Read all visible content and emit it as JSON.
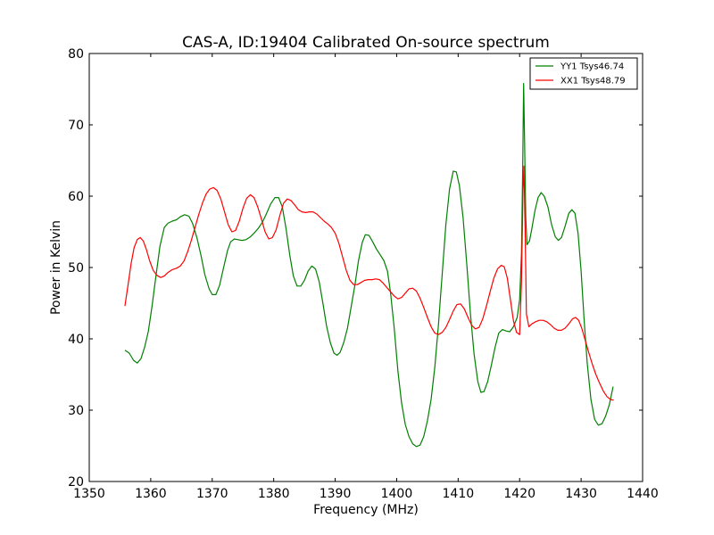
{
  "chart_data": {
    "type": "line",
    "title": "CAS-A, ID:19404 Calibrated On-source spectrum",
    "xlabel": "Frequency (MHz)",
    "ylabel": "Power in Kelvin",
    "xlim": [
      1350,
      1440
    ],
    "ylim": [
      20,
      80
    ],
    "xticks": [
      1350,
      1360,
      1370,
      1380,
      1390,
      1400,
      1410,
      1420,
      1430,
      1440
    ],
    "yticks": [
      20,
      30,
      40,
      50,
      60,
      70,
      80
    ],
    "grid": false,
    "legend_position": "top-right",
    "series": [
      {
        "name": "YY1 Tsys46.74",
        "color": "#008000",
        "points": [
          [
            1355.8,
            38.4
          ],
          [
            1356.5,
            38.0
          ],
          [
            1357.2,
            37.0
          ],
          [
            1357.8,
            36.6
          ],
          [
            1358.4,
            37.2
          ],
          [
            1359.0,
            38.8
          ],
          [
            1359.6,
            41.0
          ],
          [
            1360.2,
            44.5
          ],
          [
            1360.8,
            48.5
          ],
          [
            1361.5,
            53.0
          ],
          [
            1362.2,
            55.6
          ],
          [
            1362.8,
            56.2
          ],
          [
            1363.5,
            56.5
          ],
          [
            1364.2,
            56.7
          ],
          [
            1364.8,
            57.1
          ],
          [
            1365.5,
            57.4
          ],
          [
            1366.2,
            57.2
          ],
          [
            1366.8,
            56.2
          ],
          [
            1367.5,
            54.2
          ],
          [
            1368.2,
            51.6
          ],
          [
            1368.8,
            49.0
          ],
          [
            1369.5,
            47.0
          ],
          [
            1370.0,
            46.2
          ],
          [
            1370.6,
            46.2
          ],
          [
            1371.2,
            47.5
          ],
          [
            1371.8,
            49.8
          ],
          [
            1372.5,
            52.4
          ],
          [
            1373.0,
            53.6
          ],
          [
            1373.6,
            54.0
          ],
          [
            1374.2,
            53.9
          ],
          [
            1374.8,
            53.8
          ],
          [
            1375.5,
            53.9
          ],
          [
            1376.2,
            54.3
          ],
          [
            1376.8,
            54.8
          ],
          [
            1377.5,
            55.5
          ],
          [
            1378.2,
            56.4
          ],
          [
            1378.8,
            57.5
          ],
          [
            1379.5,
            58.9
          ],
          [
            1380.2,
            59.8
          ],
          [
            1380.8,
            59.8
          ],
          [
            1381.4,
            58.5
          ],
          [
            1382.0,
            55.5
          ],
          [
            1382.6,
            51.8
          ],
          [
            1383.2,
            48.8
          ],
          [
            1383.8,
            47.4
          ],
          [
            1384.4,
            47.4
          ],
          [
            1385.0,
            48.2
          ],
          [
            1385.6,
            49.5
          ],
          [
            1386.2,
            50.2
          ],
          [
            1386.8,
            49.8
          ],
          [
            1387.4,
            48.0
          ],
          [
            1388.0,
            45.0
          ],
          [
            1388.6,
            41.8
          ],
          [
            1389.2,
            39.5
          ],
          [
            1389.8,
            38.0
          ],
          [
            1390.3,
            37.7
          ],
          [
            1390.8,
            38.1
          ],
          [
            1391.4,
            39.5
          ],
          [
            1392.0,
            41.5
          ],
          [
            1392.6,
            44.5
          ],
          [
            1393.2,
            47.5
          ],
          [
            1393.8,
            51.0
          ],
          [
            1394.4,
            53.5
          ],
          [
            1394.9,
            54.6
          ],
          [
            1395.5,
            54.5
          ],
          [
            1396.1,
            53.6
          ],
          [
            1396.7,
            52.6
          ],
          [
            1397.3,
            51.8
          ],
          [
            1397.9,
            51.0
          ],
          [
            1398.5,
            49.5
          ],
          [
            1399.0,
            46.5
          ],
          [
            1399.6,
            41.5
          ],
          [
            1400.2,
            35.5
          ],
          [
            1400.8,
            31.0
          ],
          [
            1401.4,
            28.0
          ],
          [
            1402.0,
            26.3
          ],
          [
            1402.6,
            25.3
          ],
          [
            1403.2,
            24.9
          ],
          [
            1403.8,
            25.1
          ],
          [
            1404.4,
            26.3
          ],
          [
            1405.0,
            28.5
          ],
          [
            1405.6,
            31.5
          ],
          [
            1406.2,
            36.0
          ],
          [
            1406.8,
            42.0
          ],
          [
            1407.4,
            49.0
          ],
          [
            1408.0,
            56.0
          ],
          [
            1408.6,
            61.0
          ],
          [
            1409.2,
            63.5
          ],
          [
            1409.7,
            63.4
          ],
          [
            1410.2,
            61.5
          ],
          [
            1410.8,
            57.0
          ],
          [
            1411.4,
            50.5
          ],
          [
            1412.0,
            43.5
          ],
          [
            1412.6,
            37.8
          ],
          [
            1413.2,
            34.0
          ],
          [
            1413.7,
            32.5
          ],
          [
            1414.2,
            32.6
          ],
          [
            1414.8,
            34.0
          ],
          [
            1415.4,
            36.3
          ],
          [
            1416.0,
            38.8
          ],
          [
            1416.6,
            40.8
          ],
          [
            1417.2,
            41.3
          ],
          [
            1417.8,
            41.1
          ],
          [
            1418.4,
            41.0
          ],
          [
            1419.0,
            41.7
          ],
          [
            1419.6,
            43.0
          ],
          [
            1420.0,
            45.5
          ],
          [
            1420.3,
            52.0
          ],
          [
            1420.5,
            64.0
          ],
          [
            1420.65,
            75.8
          ],
          [
            1420.8,
            68.0
          ],
          [
            1421.0,
            57.0
          ],
          [
            1421.2,
            53.2
          ],
          [
            1421.6,
            53.7
          ],
          [
            1422.0,
            55.5
          ],
          [
            1422.5,
            58.0
          ],
          [
            1423.0,
            59.8
          ],
          [
            1423.5,
            60.5
          ],
          [
            1424.0,
            60.0
          ],
          [
            1424.6,
            58.5
          ],
          [
            1425.2,
            56.0
          ],
          [
            1425.8,
            54.3
          ],
          [
            1426.3,
            53.8
          ],
          [
            1426.8,
            54.2
          ],
          [
            1427.4,
            55.8
          ],
          [
            1428.0,
            57.6
          ],
          [
            1428.5,
            58.1
          ],
          [
            1429.0,
            57.6
          ],
          [
            1429.5,
            54.8
          ],
          [
            1430.0,
            49.5
          ],
          [
            1430.5,
            42.5
          ],
          [
            1431.0,
            36.5
          ],
          [
            1431.6,
            31.5
          ],
          [
            1432.2,
            28.7
          ],
          [
            1432.8,
            27.9
          ],
          [
            1433.4,
            28.1
          ],
          [
            1434.0,
            29.2
          ],
          [
            1434.6,
            30.8
          ],
          [
            1435.2,
            33.3
          ]
        ]
      },
      {
        "name": "XX1 Tsys48.79",
        "color": "#ff0000",
        "points": [
          [
            1355.8,
            44.6
          ],
          [
            1356.3,
            47.5
          ],
          [
            1356.8,
            50.5
          ],
          [
            1357.3,
            52.8
          ],
          [
            1357.8,
            53.9
          ],
          [
            1358.3,
            54.2
          ],
          [
            1358.8,
            53.7
          ],
          [
            1359.3,
            52.5
          ],
          [
            1359.8,
            51.0
          ],
          [
            1360.4,
            49.6
          ],
          [
            1361.0,
            48.9
          ],
          [
            1361.6,
            48.6
          ],
          [
            1362.2,
            48.8
          ],
          [
            1362.8,
            49.3
          ],
          [
            1363.5,
            49.7
          ],
          [
            1364.2,
            49.9
          ],
          [
            1364.8,
            50.2
          ],
          [
            1365.4,
            50.9
          ],
          [
            1366.0,
            52.2
          ],
          [
            1366.6,
            53.8
          ],
          [
            1367.2,
            55.6
          ],
          [
            1367.8,
            57.4
          ],
          [
            1368.4,
            59.0
          ],
          [
            1369.0,
            60.3
          ],
          [
            1369.6,
            61.0
          ],
          [
            1370.2,
            61.2
          ],
          [
            1370.8,
            60.8
          ],
          [
            1371.4,
            59.6
          ],
          [
            1372.0,
            57.8
          ],
          [
            1372.6,
            56.0
          ],
          [
            1373.2,
            55.0
          ],
          [
            1373.8,
            55.2
          ],
          [
            1374.4,
            56.5
          ],
          [
            1375.0,
            58.3
          ],
          [
            1375.6,
            59.7
          ],
          [
            1376.2,
            60.2
          ],
          [
            1376.8,
            59.8
          ],
          [
            1377.4,
            58.5
          ],
          [
            1378.0,
            56.8
          ],
          [
            1378.6,
            55.0
          ],
          [
            1379.2,
            54.0
          ],
          [
            1379.8,
            54.2
          ],
          [
            1380.4,
            55.3
          ],
          [
            1381.0,
            57.3
          ],
          [
            1381.6,
            59.0
          ],
          [
            1382.2,
            59.6
          ],
          [
            1382.8,
            59.4
          ],
          [
            1383.4,
            58.8
          ],
          [
            1384.0,
            58.1
          ],
          [
            1384.6,
            57.8
          ],
          [
            1385.2,
            57.7
          ],
          [
            1385.8,
            57.8
          ],
          [
            1386.4,
            57.8
          ],
          [
            1387.0,
            57.5
          ],
          [
            1387.6,
            57.0
          ],
          [
            1388.2,
            56.5
          ],
          [
            1388.8,
            56.1
          ],
          [
            1389.4,
            55.6
          ],
          [
            1390.0,
            54.8
          ],
          [
            1390.6,
            53.4
          ],
          [
            1391.2,
            51.5
          ],
          [
            1391.8,
            49.6
          ],
          [
            1392.4,
            48.2
          ],
          [
            1393.0,
            47.6
          ],
          [
            1393.6,
            47.6
          ],
          [
            1394.2,
            47.9
          ],
          [
            1394.8,
            48.2
          ],
          [
            1395.4,
            48.3
          ],
          [
            1396.0,
            48.3
          ],
          [
            1396.6,
            48.4
          ],
          [
            1397.2,
            48.3
          ],
          [
            1397.8,
            47.8
          ],
          [
            1398.4,
            47.2
          ],
          [
            1399.0,
            46.6
          ],
          [
            1399.6,
            46.0
          ],
          [
            1400.2,
            45.6
          ],
          [
            1400.8,
            45.8
          ],
          [
            1401.4,
            46.4
          ],
          [
            1402.0,
            47.0
          ],
          [
            1402.6,
            47.1
          ],
          [
            1403.2,
            46.7
          ],
          [
            1403.8,
            45.7
          ],
          [
            1404.4,
            44.4
          ],
          [
            1405.0,
            43.0
          ],
          [
            1405.6,
            41.7
          ],
          [
            1406.2,
            40.8
          ],
          [
            1406.8,
            40.6
          ],
          [
            1407.4,
            40.9
          ],
          [
            1408.0,
            41.6
          ],
          [
            1408.6,
            42.7
          ],
          [
            1409.2,
            43.9
          ],
          [
            1409.8,
            44.8
          ],
          [
            1410.4,
            44.9
          ],
          [
            1411.0,
            44.2
          ],
          [
            1411.6,
            43.0
          ],
          [
            1412.2,
            41.9
          ],
          [
            1412.8,
            41.4
          ],
          [
            1413.4,
            41.6
          ],
          [
            1414.0,
            42.8
          ],
          [
            1414.6,
            44.6
          ],
          [
            1415.2,
            46.6
          ],
          [
            1415.8,
            48.5
          ],
          [
            1416.4,
            49.8
          ],
          [
            1417.0,
            50.3
          ],
          [
            1417.5,
            50.1
          ],
          [
            1418.0,
            48.5
          ],
          [
            1418.5,
            45.5
          ],
          [
            1419.0,
            42.5
          ],
          [
            1419.5,
            40.9
          ],
          [
            1420.0,
            40.6
          ],
          [
            1420.3,
            48.0
          ],
          [
            1420.55,
            61.0
          ],
          [
            1420.7,
            64.2
          ],
          [
            1420.9,
            55.0
          ],
          [
            1421.1,
            43.5
          ],
          [
            1421.5,
            41.7
          ],
          [
            1422.0,
            42.1
          ],
          [
            1422.6,
            42.4
          ],
          [
            1423.2,
            42.6
          ],
          [
            1423.8,
            42.6
          ],
          [
            1424.4,
            42.4
          ],
          [
            1425.0,
            42.0
          ],
          [
            1425.6,
            41.5
          ],
          [
            1426.2,
            41.2
          ],
          [
            1426.8,
            41.2
          ],
          [
            1427.4,
            41.5
          ],
          [
            1428.0,
            42.1
          ],
          [
            1428.6,
            42.8
          ],
          [
            1429.1,
            43.0
          ],
          [
            1429.6,
            42.6
          ],
          [
            1430.1,
            41.5
          ],
          [
            1430.6,
            40.0
          ],
          [
            1431.2,
            38.2
          ],
          [
            1431.8,
            36.5
          ],
          [
            1432.4,
            35.0
          ],
          [
            1433.0,
            33.8
          ],
          [
            1433.6,
            32.7
          ],
          [
            1434.2,
            31.9
          ],
          [
            1434.8,
            31.5
          ],
          [
            1435.3,
            31.4
          ]
        ]
      }
    ]
  }
}
